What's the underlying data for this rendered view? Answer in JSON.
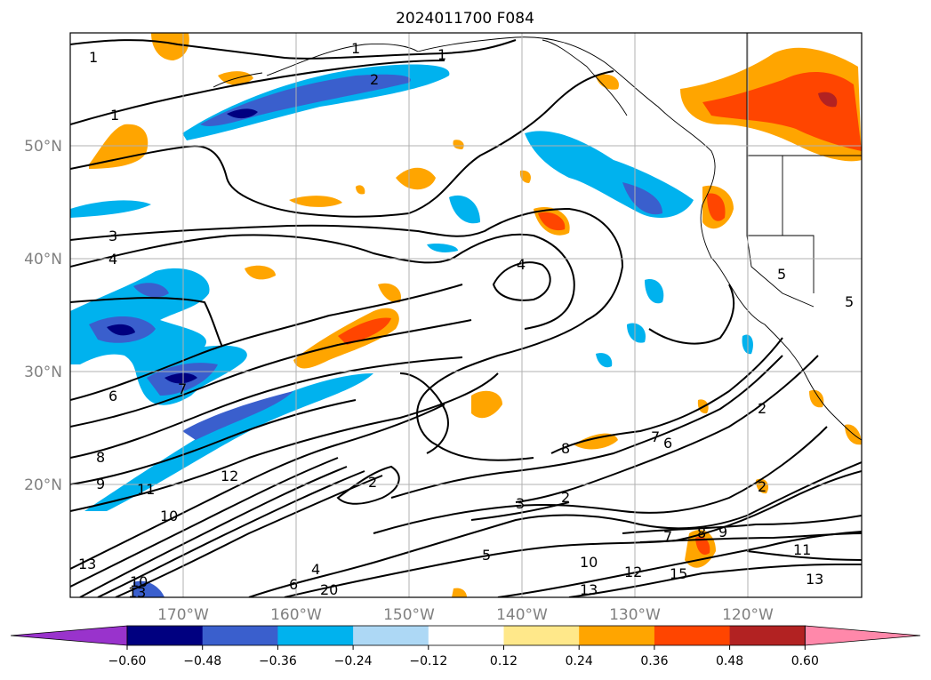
{
  "title": "2024011700 F084",
  "lat_labels": [
    "50°N",
    "40°N",
    "30°N",
    "20°N"
  ],
  "lon_labels": [
    "170°W",
    "160°W",
    "150°W",
    "140°W",
    "130°W",
    "120°W"
  ],
  "colorbar": {
    "tick_labels": [
      "−0.60",
      "−0.48",
      "−0.36",
      "−0.24",
      "−0.12",
      "0.12",
      "0.24",
      "0.36",
      "0.48",
      "0.60"
    ],
    "colors": [
      "#9933cc",
      "#000080",
      "#3a5fcd",
      "#00b2ee",
      "#add8f5",
      "#ffffff",
      "#ffe88a",
      "#ffa500",
      "#ff4500",
      "#b22222",
      "#ff88aa"
    ]
  },
  "contour_labels": [
    "1",
    "1",
    "1",
    "1",
    "2",
    "3",
    "4",
    "4",
    "5",
    "5",
    "6",
    "7",
    "8",
    "9",
    "11",
    "12",
    "10",
    "13",
    "10",
    "13",
    "2",
    "3",
    "2",
    "5",
    "8",
    "7",
    "6",
    "2",
    "7",
    "8",
    "9",
    "10",
    "12",
    "13",
    "15",
    "11",
    "13",
    "2",
    "4",
    "6",
    "20"
  ]
}
